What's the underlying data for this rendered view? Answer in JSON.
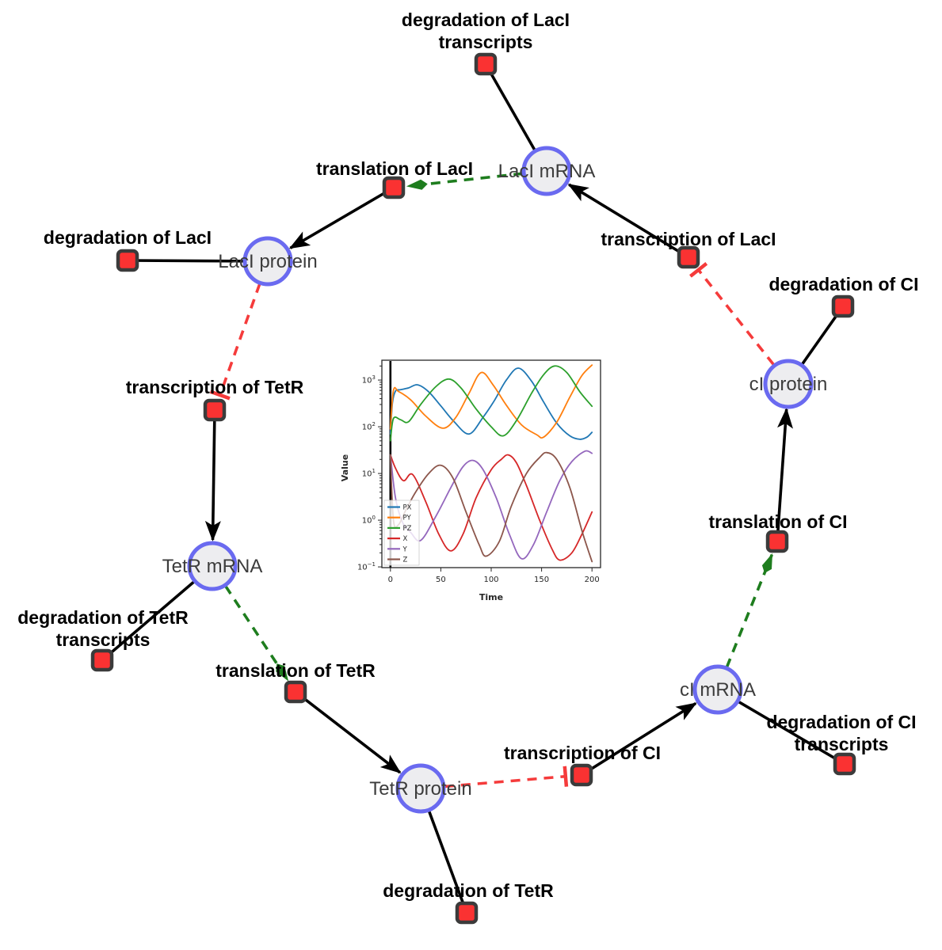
{
  "colors": {
    "edge": "#000000",
    "activate": "#1e7d1e",
    "inhibit": "#f53b3b",
    "species_fill": "#ededf0",
    "species_stroke": "#6a6af0",
    "reaction_fill": "#fa3232",
    "reaction_stroke": "#3b3b3b",
    "reaction_label": "#000000",
    "species_label": "#3c3c3c",
    "axis": "#262626"
  },
  "network": {
    "species": {
      "laci_mrna": "LacI mRNA",
      "laci_protein": "LacI protein",
      "tetr_mrna": "TetR mRNA",
      "tetr_protein": "TetR protein",
      "ci_mrna": "cI mRNA",
      "ci_protein": "cI protein"
    },
    "reactions": {
      "deg_laci_transcripts_1": "degradation of LacI",
      "deg_laci_transcripts_2": "transcripts",
      "translation_laci": "translation of LacI",
      "deg_laci": "degradation of LacI",
      "transcription_tetr": "transcription of TetR",
      "deg_tetr_transcripts_1": "degradation of TetR",
      "deg_tetr_transcripts_2": "transcripts",
      "translation_tetr": "translation of TetR",
      "deg_tetr": "degradation of TetR",
      "transcription_ci": "transcription of CI",
      "deg_ci_transcripts_1": "degradation of CI",
      "deg_ci_transcripts_2": "transcripts",
      "translation_ci": "translation of CI",
      "deg_ci": "degradation of CI",
      "transcription_laci": "transcription of LacI"
    },
    "edges": [
      {
        "from": "LacI mRNA",
        "to": "degradation of LacI transcripts",
        "type": "consumption"
      },
      {
        "from": "LacI mRNA",
        "to": "translation of LacI",
        "type": "activation"
      },
      {
        "from": "translation of LacI",
        "to": "LacI protein",
        "type": "production"
      },
      {
        "from": "LacI protein",
        "to": "degradation of LacI",
        "type": "consumption"
      },
      {
        "from": "LacI protein",
        "to": "transcription of TetR",
        "type": "inhibition"
      },
      {
        "from": "transcription of TetR",
        "to": "TetR mRNA",
        "type": "production"
      },
      {
        "from": "TetR mRNA",
        "to": "degradation of TetR transcripts",
        "type": "consumption"
      },
      {
        "from": "TetR mRNA",
        "to": "translation of TetR",
        "type": "activation"
      },
      {
        "from": "translation of TetR",
        "to": "TetR protein",
        "type": "production"
      },
      {
        "from": "TetR protein",
        "to": "degradation of TetR",
        "type": "consumption"
      },
      {
        "from": "TetR protein",
        "to": "transcription of CI",
        "type": "inhibition"
      },
      {
        "from": "transcription of CI",
        "to": "cI mRNA",
        "type": "production"
      },
      {
        "from": "cI mRNA",
        "to": "degradation of CI transcripts",
        "type": "consumption"
      },
      {
        "from": "cI mRNA",
        "to": "translation of CI",
        "type": "activation"
      },
      {
        "from": "translation of CI",
        "to": "cI protein",
        "type": "production"
      },
      {
        "from": "cI protein",
        "to": "degradation of CI",
        "type": "consumption"
      },
      {
        "from": "cI protein",
        "to": "transcription of LacI",
        "type": "inhibition"
      },
      {
        "from": "transcription of LacI",
        "to": "LacI mRNA",
        "type": "production"
      }
    ]
  },
  "chart_data": {
    "type": "line",
    "xlabel": "Time",
    "ylabel": "Value",
    "x_range": [
      0,
      200
    ],
    "y_scale": "log",
    "y_range_exponents": [
      -1,
      3
    ],
    "x_ticks": [
      0,
      50,
      100,
      150,
      200
    ],
    "y_tick_exponents": [
      3,
      2,
      1,
      0,
      -1
    ],
    "legend_position": "lower left",
    "initial_line": {
      "x": 0
    },
    "series": [
      {
        "name": "PX",
        "color": "#1f77b4",
        "points": [
          [
            0,
            70
          ],
          [
            2,
            320
          ],
          [
            5,
            580
          ],
          [
            10,
            620
          ],
          [
            18,
            680
          ],
          [
            27,
            790
          ],
          [
            38,
            560
          ],
          [
            50,
            280
          ],
          [
            63,
            130
          ],
          [
            78,
            70
          ],
          [
            92,
            160
          ],
          [
            103,
            360
          ],
          [
            115,
            1000
          ],
          [
            127,
            1800
          ],
          [
            140,
            950
          ],
          [
            152,
            340
          ],
          [
            165,
            120
          ],
          [
            178,
            64
          ],
          [
            188,
            54
          ],
          [
            195,
            60
          ],
          [
            200,
            76
          ]
        ]
      },
      {
        "name": "PY",
        "color": "#ff7f0e",
        "points": [
          [
            0,
            90
          ],
          [
            3,
            600
          ],
          [
            8,
            570
          ],
          [
            20,
            380
          ],
          [
            35,
            170
          ],
          [
            52,
            93
          ],
          [
            65,
            160
          ],
          [
            78,
            520
          ],
          [
            90,
            1450
          ],
          [
            102,
            780
          ],
          [
            115,
            290
          ],
          [
            130,
            110
          ],
          [
            145,
            68
          ],
          [
            152,
            60
          ],
          [
            165,
            125
          ],
          [
            178,
            430
          ],
          [
            190,
            1250
          ],
          [
            200,
            2100
          ]
        ]
      },
      {
        "name": "PZ",
        "color": "#2ca02c",
        "points": [
          [
            0,
            50
          ],
          [
            3,
            150
          ],
          [
            10,
            142
          ],
          [
            18,
            128
          ],
          [
            30,
            300
          ],
          [
            45,
            720
          ],
          [
            58,
            1050
          ],
          [
            70,
            680
          ],
          [
            85,
            240
          ],
          [
            100,
            100
          ],
          [
            112,
            64
          ],
          [
            125,
            135
          ],
          [
            140,
            520
          ],
          [
            152,
            1300
          ],
          [
            163,
            2000
          ],
          [
            175,
            1450
          ],
          [
            188,
            560
          ],
          [
            200,
            275
          ]
        ]
      },
      {
        "name": "X",
        "color": "#d62728",
        "points": [
          [
            0,
            25
          ],
          [
            5,
            13
          ],
          [
            13,
            7
          ],
          [
            22,
            9.5
          ],
          [
            35,
            2.5
          ],
          [
            48,
            0.5
          ],
          [
            60,
            0.22
          ],
          [
            72,
            0.5
          ],
          [
            85,
            3
          ],
          [
            100,
            12
          ],
          [
            110,
            20
          ],
          [
            117,
            25
          ],
          [
            125,
            17
          ],
          [
            135,
            5.5
          ],
          [
            148,
            1
          ],
          [
            160,
            0.25
          ],
          [
            168,
            0.14
          ],
          [
            180,
            0.2
          ],
          [
            190,
            0.5
          ],
          [
            200,
            1.5
          ]
        ]
      },
      {
        "name": "Y",
        "color": "#9467bd",
        "points": [
          [
            0,
            25
          ],
          [
            5,
            3
          ],
          [
            12,
            0.9
          ],
          [
            20,
            0.55
          ],
          [
            30,
            0.37
          ],
          [
            45,
            1.2
          ],
          [
            60,
            5
          ],
          [
            72,
            14
          ],
          [
            82,
            19
          ],
          [
            92,
            12
          ],
          [
            105,
            3
          ],
          [
            118,
            0.5
          ],
          [
            130,
            0.15
          ],
          [
            142,
            0.3
          ],
          [
            155,
            1.5
          ],
          [
            168,
            7
          ],
          [
            180,
            18
          ],
          [
            193,
            30
          ],
          [
            200,
            27
          ]
        ]
      },
      {
        "name": "Z",
        "color": "#8c564b",
        "points": [
          [
            0,
            25
          ],
          [
            3,
            1.0
          ],
          [
            8,
            0.8
          ],
          [
            15,
            1.6
          ],
          [
            25,
            4
          ],
          [
            38,
            10
          ],
          [
            50,
            15
          ],
          [
            62,
            8
          ],
          [
            75,
            1.5
          ],
          [
            88,
            0.3
          ],
          [
            95,
            0.17
          ],
          [
            108,
            0.35
          ],
          [
            120,
            2
          ],
          [
            135,
            10
          ],
          [
            148,
            22
          ],
          [
            155,
            28
          ],
          [
            165,
            20
          ],
          [
            178,
            5
          ],
          [
            190,
            0.6
          ],
          [
            200,
            0.13
          ]
        ]
      }
    ]
  }
}
